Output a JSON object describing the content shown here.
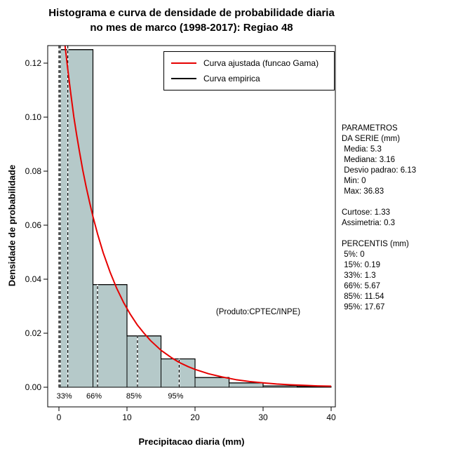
{
  "title": {
    "line1": "Histograma e curva de densidade de probabilidade diaria",
    "line2": "no mes de marco (1998-2017): Regiao 48"
  },
  "side_panel": {
    "lines": [
      "PARAMETROS",
      "DA SERIE (mm)",
      " Media: 5.3",
      " Mediana: 3.16",
      " Desvio padrao: 6.13",
      " Min: 0",
      " Max: 36.83",
      "",
      "Curtose: 1.33",
      "Assimetria: 0.3",
      "",
      "PERCENTIS (mm)",
      " 5%: 0",
      " 15%: 0.19",
      " 33%: 1.3",
      " 66%: 5.67",
      " 85%: 11.54",
      " 95%: 17.67"
    ]
  },
  "chart_data": {
    "type": "histogram+line",
    "title": "Histograma e curva de densidade de probabilidade diaria no mes de marco (1998-2017): Regiao 48",
    "xlabel": "Precipitacao diaria (mm)",
    "ylabel": "Densidade de probabilidade",
    "xlim": [
      0,
      40
    ],
    "ylim": [
      0,
      0.1265
    ],
    "grid": false,
    "legend_position": "top-right",
    "x_ticks": [
      "0",
      "10",
      "20",
      "30",
      "40"
    ],
    "y_ticks": [
      "0.00",
      "0.02",
      "0.04",
      "0.06",
      "0.08",
      "0.10",
      "0.12"
    ],
    "histogram": {
      "breaks": [
        0,
        5,
        10,
        15,
        20,
        25,
        30,
        35,
        40
      ],
      "densities": [
        0.125,
        0.038,
        0.019,
        0.0105,
        0.0036,
        0.0016,
        0.0005,
        0.0003
      ]
    },
    "gamma_curve": {
      "mean": 5.3,
      "sd": 6.13,
      "points": [
        [
          0.75,
          0.132
        ],
        [
          0.9,
          0.1265
        ],
        [
          1.1,
          0.122
        ],
        [
          1.4,
          0.1155
        ],
        [
          1.8,
          0.1075
        ],
        [
          2.2,
          0.1
        ],
        [
          2.6,
          0.0935
        ],
        [
          3.0,
          0.0875
        ],
        [
          3.5,
          0.0805
        ],
        [
          4.0,
          0.0742
        ],
        [
          4.5,
          0.0685
        ],
        [
          5.0,
          0.0632
        ],
        [
          5.67,
          0.0568
        ],
        [
          6.5,
          0.0498
        ],
        [
          7.5,
          0.0427
        ],
        [
          8.5,
          0.0366
        ],
        [
          9.5,
          0.0314
        ],
        [
          10.5,
          0.027
        ],
        [
          11.54,
          0.023
        ],
        [
          12.5,
          0.02
        ],
        [
          13.5,
          0.0172
        ],
        [
          15,
          0.0137
        ],
        [
          16.5,
          0.011
        ],
        [
          17.67,
          0.0092
        ],
        [
          19,
          0.0076
        ],
        [
          20,
          0.0066
        ],
        [
          22,
          0.005
        ],
        [
          24,
          0.0038
        ],
        [
          26,
          0.0028
        ],
        [
          28,
          0.0021
        ],
        [
          30,
          0.0016
        ],
        [
          32,
          0.0012
        ],
        [
          34,
          0.0009
        ],
        [
          36,
          0.0007
        ],
        [
          38,
          0.0005
        ],
        [
          40,
          0.0004
        ]
      ]
    },
    "percentiles": [
      {
        "label": "",
        "x": 0,
        "top": 0.1265
      },
      {
        "label": "",
        "x": 0.19,
        "top": 0.1265
      },
      {
        "label": "33%",
        "x": 1.3,
        "top": 0.1265
      },
      {
        "label": "66%",
        "x": 5.67,
        "top": 0.038
      },
      {
        "label": "85%",
        "x": 11.54,
        "top": 0.019
      },
      {
        "label": "95%",
        "x": 17.67,
        "top": 0.0105
      }
    ],
    "legend": [
      {
        "label": "Curva ajustada (funcao Gama)",
        "color": "#e60000"
      },
      {
        "label": "Curva empirica",
        "color": "#000000"
      }
    ],
    "annotation": "(Produto:CPTEC/INPE)",
    "colors": {
      "bar_fill": "#b5c9c9",
      "bar_border": "#000000",
      "curve": "#e60000",
      "percentile_line": "#000000"
    }
  }
}
